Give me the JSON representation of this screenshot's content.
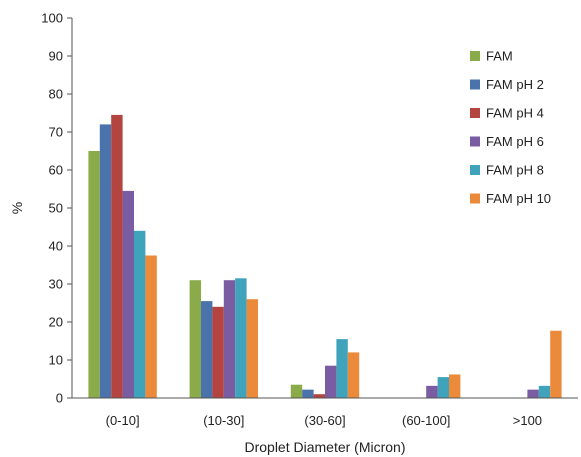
{
  "chart_data": {
    "type": "bar",
    "title": "",
    "xlabel": "Droplet Diameter (Micron)",
    "ylabel": "%",
    "ylim": [
      0,
      100
    ],
    "yticks": [
      0,
      10,
      20,
      30,
      40,
      50,
      60,
      70,
      80,
      90,
      100
    ],
    "categories": [
      "(0-10]",
      "(10-30]",
      "(30-60]",
      "(60-100]",
      ">100"
    ],
    "grid": false,
    "legend_position": "right",
    "series": [
      {
        "name": "FAM",
        "color": "#8bab4a",
        "values": [
          65,
          31,
          3.5,
          0,
          0
        ]
      },
      {
        "name": "FAM pH 2",
        "color": "#4a72ab",
        "values": [
          72,
          25.5,
          2.2,
          0,
          0
        ]
      },
      {
        "name": "FAM pH 4",
        "color": "#b34440",
        "values": [
          74.5,
          24,
          1,
          0,
          0
        ]
      },
      {
        "name": "FAM pH 6",
        "color": "#7a5ca3",
        "values": [
          54.5,
          31,
          8.5,
          3.2,
          2.2
        ]
      },
      {
        "name": "FAM pH 8",
        "color": "#3fa3bc",
        "values": [
          44,
          31.5,
          15.5,
          5.5,
          3.2
        ]
      },
      {
        "name": "FAM pH 10",
        "color": "#ea8a3a",
        "values": [
          37.5,
          26,
          12,
          6.2,
          17.7
        ]
      }
    ]
  }
}
